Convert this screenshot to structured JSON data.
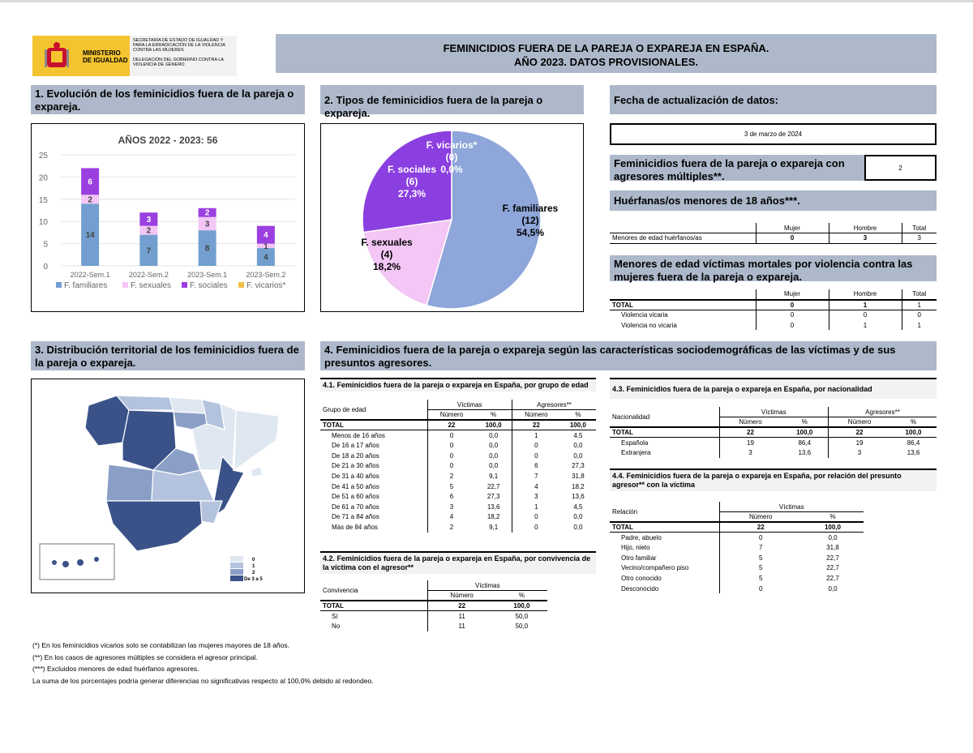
{
  "header": {
    "ministry_line1": "MINISTERIO",
    "ministry_line2": "DE IGUALDAD",
    "secretaria": "SECRETARÍA DE ESTADO DE IGUALDAD Y PARA LA ERRADICACIÓN DE LA VIOLENCIA CONTRA LAS MUJERES",
    "delegacion": "DELEGACIÓN DEL GOBIERNO CONTRA LA VIOLENCIA DE GÉNERO",
    "title_line1": "FEMINICIDIOS FUERA DE LA PAREJA O EXPAREJA EN ESPAÑA.",
    "title_line2": "AÑO 2023. DATOS PROVISIONALES."
  },
  "section1": {
    "title": "1. Evolución de los feminicidios fuera de la pareja o expareja."
  },
  "section2": {
    "title": "2. Tipos de feminicidios fuera de la pareja o expareja."
  },
  "section3": {
    "title": "3. Distribución territorial de los feminicidios fuera de la pareja o expareja."
  },
  "section4": {
    "title": "4. Feminicidios fuera de la pareja o expareja según las características sociodemográficas de las víctimas y de sus presuntos agresores."
  },
  "colors": {
    "familiares": "#729fcf",
    "sexuales": "#f3c6f5",
    "sociales": "#9b3fe0",
    "vicarios": "#f0c24b",
    "pie_familiares": "#8ea6d9",
    "pie_sexuales": "#f3c6f5",
    "pie_sociales": "#8c3fe0"
  },
  "chart_data": [
    {
      "type": "bar",
      "title": "AÑOS 2022 - 2023: 56",
      "categories": [
        "2022-Sem.1",
        "2022-Sem.2",
        "2023-Sem.1",
        "2023-Sem.2"
      ],
      "series": [
        {
          "name": "F. familiares",
          "values": [
            14,
            7,
            8,
            4
          ]
        },
        {
          "name": "F. sexuales",
          "values": [
            2,
            2,
            3,
            1
          ]
        },
        {
          "name": "F. sociales",
          "values": [
            6,
            3,
            2,
            4
          ]
        },
        {
          "name": "F. vicarios*",
          "values": [
            0,
            0,
            0,
            0
          ]
        }
      ],
      "yticks": [
        "0",
        "5",
        "10",
        "15",
        "20",
        "25"
      ],
      "ylim": [
        0,
        25
      ],
      "stacked": true,
      "legend": "bottom"
    },
    {
      "type": "pie",
      "slices": [
        {
          "name": "F. familiares",
          "count": "(12)",
          "pct": "54,5%",
          "value": 12
        },
        {
          "name": "F. sexuales",
          "count": "(4)",
          "pct": "18,2%",
          "value": 4
        },
        {
          "name": "F. sociales",
          "count": "(6)",
          "pct": "27,3%",
          "value": 6
        },
        {
          "name": "F. vicarios*",
          "count": "(0)",
          "pct": "0,0%",
          "value": 0
        }
      ]
    }
  ],
  "update": {
    "label": "Fecha de actualización de datos:",
    "date": "3 de marzo de 2024"
  },
  "multiples": {
    "label": "Feminicidios fuera de la pareja o expareja con agresores múltiples**.",
    "value": "2"
  },
  "huerfanas": {
    "title": "Huérfanas/os menores de 18 años***.",
    "cols": [
      "Mujer",
      "Hombre",
      "Total"
    ],
    "row_label": "Menores de edad huérfanos/as",
    "row": [
      "0",
      "3",
      "3"
    ]
  },
  "victimas_menores": {
    "title": "Menores de edad víctimas mortales por violencia contra las mujeres fuera de la pareja o expareja.",
    "cols": [
      "Mujer",
      "Hombre",
      "Total"
    ],
    "rows": [
      {
        "label": "TOTAL",
        "v": [
          "0",
          "1",
          "1"
        ]
      },
      {
        "label": "Violencia vicaria",
        "v": [
          "0",
          "0",
          "0"
        ]
      },
      {
        "label": "Violencia no vicaria",
        "v": [
          "0",
          "1",
          "1"
        ]
      }
    ]
  },
  "map": {
    "legend": [
      "0",
      "1",
      "2",
      "De 3 a 5"
    ]
  },
  "t41": {
    "title": "4.1. Feminicidios fuera de la pareja o expareja en España, por grupo de edad",
    "row_header": "Grupo de edad",
    "group1": "Víctimas",
    "group2": "Agresores**",
    "num": "Número",
    "pct": "%",
    "rows": [
      {
        "label": "TOTAL",
        "v": [
          "22",
          "100,0",
          "22",
          "100,0"
        ]
      },
      {
        "label": "Menos de 16 años",
        "v": [
          "0",
          "0,0",
          "1",
          "4,5"
        ]
      },
      {
        "label": "De 16 a 17 años",
        "v": [
          "0",
          "0,0",
          "0",
          "0,0"
        ]
      },
      {
        "label": "De 18 a 20 años",
        "v": [
          "0",
          "0,0",
          "0",
          "0,0"
        ]
      },
      {
        "label": "De 21 a 30 años",
        "v": [
          "0",
          "0,0",
          "6",
          "27,3"
        ]
      },
      {
        "label": "De 31 a 40 años",
        "v": [
          "2",
          "9,1",
          "7",
          "31,8"
        ]
      },
      {
        "label": "De 41 a 50 años",
        "v": [
          "5",
          "22,7",
          "4",
          "18,2"
        ]
      },
      {
        "label": "De 51 a 60 años",
        "v": [
          "6",
          "27,3",
          "3",
          "13,6"
        ]
      },
      {
        "label": "De 61 a 70 años",
        "v": [
          "3",
          "13,6",
          "1",
          "4,5"
        ]
      },
      {
        "label": "De 71 a 84 años",
        "v": [
          "4",
          "18,2",
          "0",
          "0,0"
        ]
      },
      {
        "label": "Más de 84 años",
        "v": [
          "2",
          "9,1",
          "0",
          "0,0"
        ]
      }
    ]
  },
  "t42": {
    "title": "4.2. Feminicidios fuera de la pareja o expareja en España, por convivencia de la víctima con el agresor**",
    "row_header": "Convivencia",
    "group1": "Víctimas",
    "num": "Número",
    "pct": "%",
    "rows": [
      {
        "label": "TOTAL",
        "v": [
          "22",
          "100,0"
        ]
      },
      {
        "label": "Sí",
        "v": [
          "11",
          "50,0"
        ]
      },
      {
        "label": "No",
        "v": [
          "11",
          "50,0"
        ]
      }
    ]
  },
  "t43": {
    "title": "4.3. Feminicidios fuera de la pareja o expareja en España, por nacionalidad",
    "row_header": "Nacionalidad",
    "group1": "Víctimas",
    "group2": "Agresores**",
    "num": "Número",
    "pct": "%",
    "rows": [
      {
        "label": "TOTAL",
        "v": [
          "22",
          "100,0",
          "22",
          "100,0"
        ]
      },
      {
        "label": "Española",
        "v": [
          "19",
          "86,4",
          "19",
          "86,4"
        ]
      },
      {
        "label": "Extranjera",
        "v": [
          "3",
          "13,6",
          "3",
          "13,6"
        ]
      }
    ]
  },
  "t44": {
    "title": "4.4. Feminicidios fuera de la pareja o expareja en España, por relación del presunto agresor** con la víctima",
    "row_header": "Relación",
    "group1": "Víctimas",
    "num": "Número",
    "pct": "%",
    "rows": [
      {
        "label": "TOTAL",
        "v": [
          "22",
          "100,0"
        ]
      },
      {
        "label": "Padre, abuelo",
        "v": [
          "0",
          "0,0"
        ]
      },
      {
        "label": "Hijo, nieto",
        "v": [
          "7",
          "31,8"
        ]
      },
      {
        "label": "Otro familiar",
        "v": [
          "5",
          "22,7"
        ]
      },
      {
        "label": "Vecino/compañero piso",
        "v": [
          "5",
          "22,7"
        ]
      },
      {
        "label": "Otro conocido",
        "v": [
          "5",
          "22,7"
        ]
      },
      {
        "label": "Desconocido",
        "v": [
          "0",
          "0,0"
        ]
      }
    ]
  },
  "footnotes": [
    "(*) En los feminicidios vicarios solo se contabilizan las mujeres mayores de 18 años.",
    "(**) En los casos de agresores múltiples se considera el agresor principal.",
    "(***) Excluidos menores de edad huérfanos agresores.",
    "La suma de los porcentajes podría generar diferencias no significativas respecto al 100,0% debido al redondeo."
  ]
}
